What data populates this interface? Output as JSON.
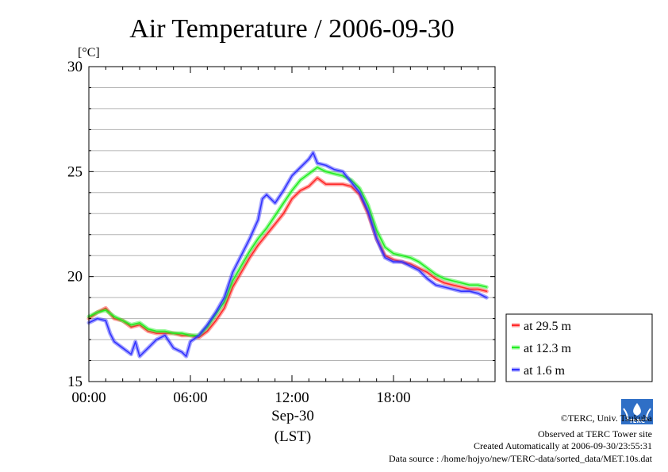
{
  "chart_data": {
    "type": "line",
    "title": "Air Temperature / 2006-09-30",
    "ylabel": "[°C]",
    "xlabel_date": "Sep-30",
    "xlabel_zone": "(LST)",
    "ylim": [
      15,
      30
    ],
    "xlim": [
      0,
      24
    ],
    "y_ticks": [
      {
        "value": 15,
        "label": "15"
      },
      {
        "value": 20,
        "label": "20"
      },
      {
        "value": 25,
        "label": "25"
      },
      {
        "value": 30,
        "label": "30"
      }
    ],
    "x_ticks": [
      {
        "value": 0,
        "label": "00:00"
      },
      {
        "value": 6,
        "label": "06:00"
      },
      {
        "value": 12,
        "label": "12:00"
      },
      {
        "value": 18,
        "label": "18:00"
      }
    ],
    "grid": true,
    "legend_position": "right-bottom",
    "series": [
      {
        "name": "at 29.5 m",
        "color": "#ff2a2a",
        "points": [
          [
            0,
            18.0
          ],
          [
            0.5,
            18.3
          ],
          [
            1.0,
            18.5
          ],
          [
            1.5,
            18.0
          ],
          [
            2.0,
            17.9
          ],
          [
            2.5,
            17.6
          ],
          [
            3.0,
            17.7
          ],
          [
            3.5,
            17.4
          ],
          [
            4.0,
            17.3
          ],
          [
            4.5,
            17.3
          ],
          [
            5.0,
            17.3
          ],
          [
            5.5,
            17.2
          ],
          [
            6.0,
            17.2
          ],
          [
            6.5,
            17.1
          ],
          [
            7.0,
            17.4
          ],
          [
            7.5,
            17.9
          ],
          [
            8.0,
            18.5
          ],
          [
            8.5,
            19.5
          ],
          [
            9.0,
            20.2
          ],
          [
            9.5,
            20.9
          ],
          [
            10.0,
            21.5
          ],
          [
            10.5,
            22.0
          ],
          [
            11.0,
            22.5
          ],
          [
            11.5,
            23.0
          ],
          [
            12.0,
            23.7
          ],
          [
            12.5,
            24.1
          ],
          [
            13.0,
            24.3
          ],
          [
            13.5,
            24.7
          ],
          [
            14.0,
            24.4
          ],
          [
            14.5,
            24.4
          ],
          [
            15.0,
            24.4
          ],
          [
            15.5,
            24.3
          ],
          [
            16.0,
            23.9
          ],
          [
            16.5,
            23.0
          ],
          [
            17.0,
            21.8
          ],
          [
            17.5,
            21.0
          ],
          [
            18.0,
            20.8
          ],
          [
            18.5,
            20.7
          ],
          [
            19.0,
            20.6
          ],
          [
            19.5,
            20.4
          ],
          [
            20.0,
            20.2
          ],
          [
            20.5,
            19.9
          ],
          [
            21.0,
            19.7
          ],
          [
            21.5,
            19.6
          ],
          [
            22.0,
            19.5
          ],
          [
            22.5,
            19.4
          ],
          [
            23.0,
            19.4
          ],
          [
            23.5,
            19.3
          ]
        ]
      },
      {
        "name": "at 12.3 m",
        "color": "#22ee22",
        "points": [
          [
            0,
            18.1
          ],
          [
            0.5,
            18.3
          ],
          [
            1.0,
            18.4
          ],
          [
            1.5,
            18.1
          ],
          [
            2.0,
            17.9
          ],
          [
            2.5,
            17.7
          ],
          [
            3.0,
            17.8
          ],
          [
            3.5,
            17.5
          ],
          [
            4.0,
            17.4
          ],
          [
            4.5,
            17.4
          ],
          [
            5.0,
            17.3
          ],
          [
            5.5,
            17.3
          ],
          [
            6.0,
            17.2
          ],
          [
            6.5,
            17.2
          ],
          [
            7.0,
            17.6
          ],
          [
            7.5,
            18.2
          ],
          [
            8.0,
            18.8
          ],
          [
            8.5,
            19.8
          ],
          [
            9.0,
            20.5
          ],
          [
            9.5,
            21.2
          ],
          [
            10.0,
            21.8
          ],
          [
            10.5,
            22.3
          ],
          [
            11.0,
            22.9
          ],
          [
            11.5,
            23.5
          ],
          [
            12.0,
            24.1
          ],
          [
            12.5,
            24.6
          ],
          [
            13.0,
            24.9
          ],
          [
            13.5,
            25.2
          ],
          [
            14.0,
            25.0
          ],
          [
            14.5,
            24.9
          ],
          [
            15.0,
            24.8
          ],
          [
            15.5,
            24.6
          ],
          [
            16.0,
            24.2
          ],
          [
            16.5,
            23.4
          ],
          [
            17.0,
            22.2
          ],
          [
            17.5,
            21.4
          ],
          [
            18.0,
            21.1
          ],
          [
            18.5,
            21.0
          ],
          [
            19.0,
            20.9
          ],
          [
            19.5,
            20.7
          ],
          [
            20.0,
            20.4
          ],
          [
            20.5,
            20.1
          ],
          [
            21.0,
            19.9
          ],
          [
            21.5,
            19.8
          ],
          [
            22.0,
            19.7
          ],
          [
            22.5,
            19.6
          ],
          [
            23.0,
            19.6
          ],
          [
            23.5,
            19.5
          ]
        ]
      },
      {
        "name": "at 1.6 m",
        "color": "#3333ff",
        "points": [
          [
            0,
            17.8
          ],
          [
            0.5,
            18.0
          ],
          [
            1.0,
            17.9
          ],
          [
            1.25,
            17.3
          ],
          [
            1.5,
            16.9
          ],
          [
            2.0,
            16.6
          ],
          [
            2.5,
            16.3
          ],
          [
            2.75,
            16.9
          ],
          [
            3.0,
            16.2
          ],
          [
            3.5,
            16.6
          ],
          [
            4.0,
            17.0
          ],
          [
            4.5,
            17.2
          ],
          [
            5.0,
            16.6
          ],
          [
            5.5,
            16.4
          ],
          [
            5.75,
            16.2
          ],
          [
            6.0,
            16.9
          ],
          [
            6.5,
            17.2
          ],
          [
            7.0,
            17.7
          ],
          [
            7.5,
            18.3
          ],
          [
            8.0,
            19.0
          ],
          [
            8.5,
            20.2
          ],
          [
            9.0,
            21.0
          ],
          [
            9.5,
            21.8
          ],
          [
            10.0,
            22.7
          ],
          [
            10.25,
            23.7
          ],
          [
            10.5,
            23.9
          ],
          [
            11.0,
            23.5
          ],
          [
            11.5,
            24.1
          ],
          [
            12.0,
            24.8
          ],
          [
            12.5,
            25.2
          ],
          [
            13.0,
            25.6
          ],
          [
            13.25,
            25.9
          ],
          [
            13.5,
            25.4
          ],
          [
            14.0,
            25.3
          ],
          [
            14.5,
            25.1
          ],
          [
            15.0,
            25.0
          ],
          [
            15.5,
            24.5
          ],
          [
            16.0,
            24.0
          ],
          [
            16.5,
            23.1
          ],
          [
            17.0,
            21.8
          ],
          [
            17.5,
            20.9
          ],
          [
            18.0,
            20.7
          ],
          [
            18.5,
            20.7
          ],
          [
            19.0,
            20.5
          ],
          [
            19.5,
            20.3
          ],
          [
            20.0,
            19.9
          ],
          [
            20.5,
            19.6
          ],
          [
            21.0,
            19.5
          ],
          [
            21.5,
            19.4
          ],
          [
            22.0,
            19.3
          ],
          [
            22.5,
            19.3
          ],
          [
            23.0,
            19.2
          ],
          [
            23.5,
            19.0
          ]
        ]
      }
    ]
  },
  "credits": {
    "copyright": "©TERC, Univ. Tsukuba",
    "site": "Observed at TERC Tower site",
    "created": "Created Automatically at 2006-09-30/23:55:31",
    "source": "Data source : /home/hojyo/new/TERC-data/sorted_data/MET.10s.dat",
    "logo_text": "TERC"
  }
}
